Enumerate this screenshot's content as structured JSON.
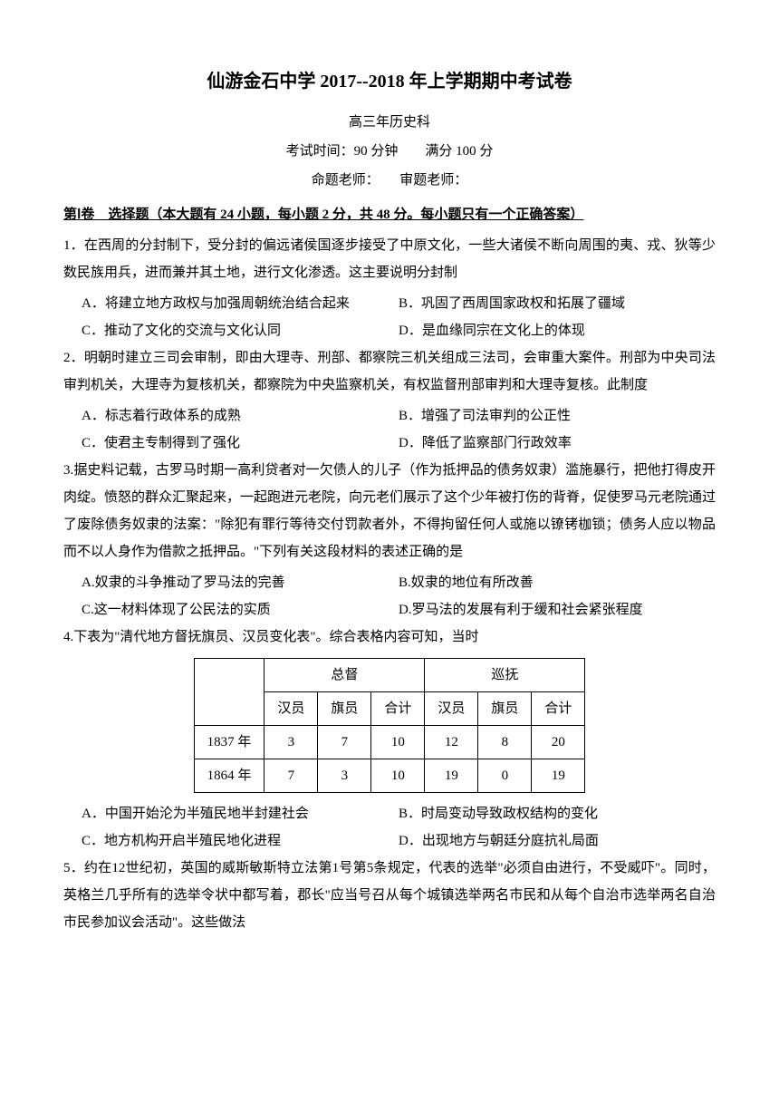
{
  "title": "仙游金石中学 2017--2018 年上学期期中考试卷",
  "subtitle1": "高三年历史科",
  "subtitle2": "考试时间：90 分钟　　满分 100 分",
  "subtitle3": "命题老师：　　审题老师：",
  "section1_header": "第Ⅰ卷　选择题（本大题有 24 小题，每小题 2 分，共 48 分。每小题只有一个正确答案）",
  "q1": {
    "text": "1．在西周的分封制下，受分封的偏远诸侯国逐步接受了中原文化，一些大诸侯不断向周围的夷、戎、狄等少数民族用兵，进而兼并其土地，进行文化渗透。这主要说明分封制",
    "a": "A．将建立地方政权与加强周朝统治结合起来",
    "b": "B．巩固了西周国家政权和拓展了疆域",
    "c": "C．推动了文化的交流与文化认同",
    "d": "D．是血缘同宗在文化上的体现"
  },
  "q2": {
    "text": "2．明朝时建立三司会审制，即由大理寺、刑部、都察院三机关组成三法司，会审重大案件。刑部为中央司法审判机关，大理寺为复核机关，都察院为中央监察机关，有权监督刑部审判和大理寺复核。此制度",
    "a": "A．标志着行政体系的成熟",
    "b": "B．增强了司法审判的公正性",
    "c": "C．使君主专制得到了强化",
    "d": "D．降低了监察部门行政效率"
  },
  "q3": {
    "text": "3.据史料记载，古罗马时期一高利贷者对一欠债人的儿子（作为抵押品的债务奴隶）滥施暴行，把他打得皮开肉绽。愤怒的群众汇聚起来，一起跑进元老院，向元老们展示了这个少年被打伤的背脊，促使罗马元老院通过了废除债务奴隶的法案：\"除犯有罪行等待交付罚款者外，不得拘留任何人或施以镣铐枷锁；债务人应以物品而不以人身作为借款之抵押品。\"下列有关这段材料的表述正确的是",
    "a": "A.奴隶的斗争推动了罗马法的完善",
    "b": "B.奴隶的地位有所改善",
    "c": "C.这一材料体现了公民法的实质",
    "d": "D.罗马法的发展有利于缓和社会紧张程度"
  },
  "q4": {
    "text": "4.下表为\"清代地方督抚旗员、汉员变化表\"。综合表格内容可知，当时",
    "table": {
      "header_row1": [
        "",
        "总督",
        "巡抚"
      ],
      "header_row2": [
        "",
        "汉员",
        "旗员",
        "合计",
        "汉员",
        "旗员",
        "合计"
      ],
      "rows": [
        [
          "1837 年",
          "3",
          "7",
          "10",
          "12",
          "8",
          "20"
        ],
        [
          "1864 年",
          "7",
          "3",
          "10",
          "19",
          "0",
          "19"
        ]
      ]
    },
    "a": "A．中国开始沦为半殖民地半封建社会",
    "b": "B．时局变动导致政权结构的变化",
    "c": "C．地方机构开启半殖民地化进程",
    "d": "D．出现地方与朝廷分庭抗礼局面"
  },
  "q5": {
    "text": "5．约在12世纪初，英国的威斯敏斯特立法第1号第5条规定，代表的选举\"必须自由进行，不受威吓\"。同时，英格兰几乎所有的选举令状中都写着，郡长\"应当号召从每个城镇选举两名市民和从每个自治市选举两名自治市民参加议会活动\"。这些做法"
  }
}
